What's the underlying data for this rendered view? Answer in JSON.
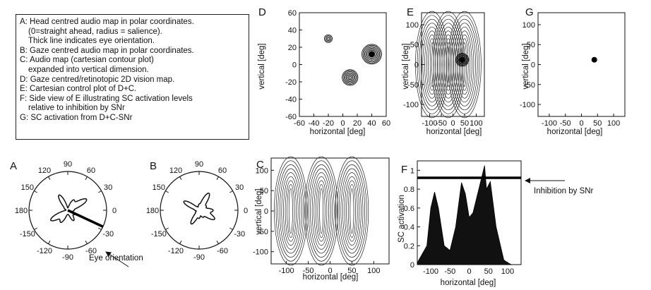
{
  "legend": {
    "lines": [
      "A: Head centred audio map in polar coordinates.",
      "    (0=straight ahead, radius = salience).",
      "    Thick line indicates eye orientation.",
      "B: Gaze centred audio map in polar coordinates.",
      "C: Audio map (cartesian contour plot)",
      "    expanded into vertical dimension.",
      "D: Gaze centred/retinotopic 2D vision map.",
      "E: Cartesian control plot of D+C.",
      "F: Side view of E illustrating SC activation levels",
      "    relative to inhibition by SNr",
      "G: SC activation from D+C-SNr"
    ]
  },
  "panels": {
    "A": {
      "label": "A",
      "polar_ticks": [
        "90",
        "60",
        "30",
        "0",
        "-30",
        "-60",
        "-90",
        "-120",
        "-150",
        "180",
        "150",
        "120"
      ],
      "annotation": "Eye orientation"
    },
    "B": {
      "label": "B",
      "polar_ticks": [
        "90",
        "60",
        "30",
        "0",
        "-30",
        "-60",
        "-90",
        "-120",
        "-150",
        "180",
        "150",
        "120"
      ]
    },
    "C": {
      "label": "C",
      "xlabel": "horizontal [deg]",
      "ylabel": "vertical [deg]",
      "xticks": [
        "-100",
        "-50",
        "0",
        "50",
        "100"
      ],
      "yticks": [
        "100",
        "50",
        "0",
        "-50",
        "-100"
      ]
    },
    "D": {
      "label": "D",
      "xlabel": "horizontal [deg]",
      "ylabel": "vertical [deg]",
      "xticks": [
        "-60",
        "-40",
        "-20",
        "0",
        "20",
        "40",
        "60"
      ],
      "yticks": [
        "60",
        "40",
        "20",
        "0",
        "-20",
        "-40",
        "-60"
      ]
    },
    "E": {
      "label": "E",
      "xlabel": "horizontal [deg]",
      "ylabel": "vertical [deg]",
      "xticks": [
        "-100",
        "-50",
        "0",
        "50",
        "100"
      ],
      "yticks": [
        "100",
        "50",
        "0",
        "-50",
        "-100"
      ]
    },
    "F": {
      "label": "F",
      "xlabel": "horizontal [deg]",
      "ylabel": "SC activation",
      "xticks": [
        "-100",
        "-50",
        "0",
        "50",
        "100"
      ],
      "yticks": [
        "1",
        "0.8",
        "0.6",
        "0.4",
        "0.2",
        "0"
      ],
      "annotation": "Inhibition by SNr"
    },
    "G": {
      "label": "G",
      "xlabel": "horizontal [deg]",
      "ylabel": "vertical [deg]",
      "xticks": [
        "-100",
        "-50",
        "0",
        "50",
        "100"
      ],
      "yticks": [
        "100",
        "50",
        "0",
        "-50",
        "-100"
      ]
    }
  },
  "chart_data": [
    {
      "panel": "A",
      "type": "polar-line",
      "theta_deg": [
        0,
        30,
        60,
        90,
        120,
        150,
        180,
        210,
        240,
        270,
        300,
        330
      ],
      "r": [
        0.15,
        0.55,
        0.3,
        0.05,
        0.45,
        0.1,
        0.05,
        0.5,
        0.35,
        0.1,
        0.3,
        0.2
      ],
      "eye_orientation_deg": -25
    },
    {
      "panel": "B",
      "type": "polar-line",
      "theta_deg": [
        0,
        30,
        60,
        90,
        120,
        150,
        180,
        210,
        240,
        270,
        300,
        330
      ],
      "r": [
        0.35,
        0.2,
        0.5,
        0.15,
        0.1,
        0.45,
        0.1,
        0.1,
        0.4,
        0.2,
        0.2,
        0.45
      ]
    },
    {
      "panel": "C",
      "type": "contour",
      "peaks_x": [
        -90,
        -20,
        50
      ],
      "xlim": [
        -135,
        135
      ],
      "ylim": [
        -130,
        130
      ]
    },
    {
      "panel": "D",
      "type": "contour",
      "peaks": [
        {
          "x": -20,
          "y": 30,
          "strength": 0.3
        },
        {
          "x": 10,
          "y": -15,
          "strength": 0.7
        },
        {
          "x": 40,
          "y": 12,
          "strength": 1.0
        }
      ],
      "xlim": [
        -60,
        60
      ],
      "ylim": [
        -60,
        60
      ]
    },
    {
      "panel": "E",
      "type": "contour",
      "peaks_x": [
        -90,
        -20,
        50
      ],
      "vision_peak": {
        "x": 40,
        "y": 12
      },
      "xlim": [
        -135,
        135
      ],
      "ylim": [
        -130,
        130
      ]
    },
    {
      "panel": "F",
      "type": "area",
      "x": [
        -135,
        -110,
        -100,
        -90,
        -80,
        -65,
        -50,
        -35,
        -20,
        -10,
        0,
        10,
        25,
        40,
        45,
        55,
        70,
        90,
        100,
        110,
        135
      ],
      "y": [
        0.02,
        0.2,
        0.6,
        0.77,
        0.6,
        0.2,
        0.15,
        0.4,
        0.87,
        0.75,
        0.5,
        0.55,
        0.8,
        1.05,
        0.8,
        0.88,
        0.4,
        0.05,
        0.02,
        0.0,
        0.0
      ],
      "ylim": [
        0,
        1.1
      ],
      "xlim": [
        -135,
        135
      ],
      "inhibition_level": 0.92
    },
    {
      "panel": "G",
      "type": "scatter",
      "points": [
        {
          "x": 40,
          "y": 12
        }
      ],
      "xlim": [
        -135,
        135
      ],
      "ylim": [
        -130,
        130
      ]
    }
  ]
}
